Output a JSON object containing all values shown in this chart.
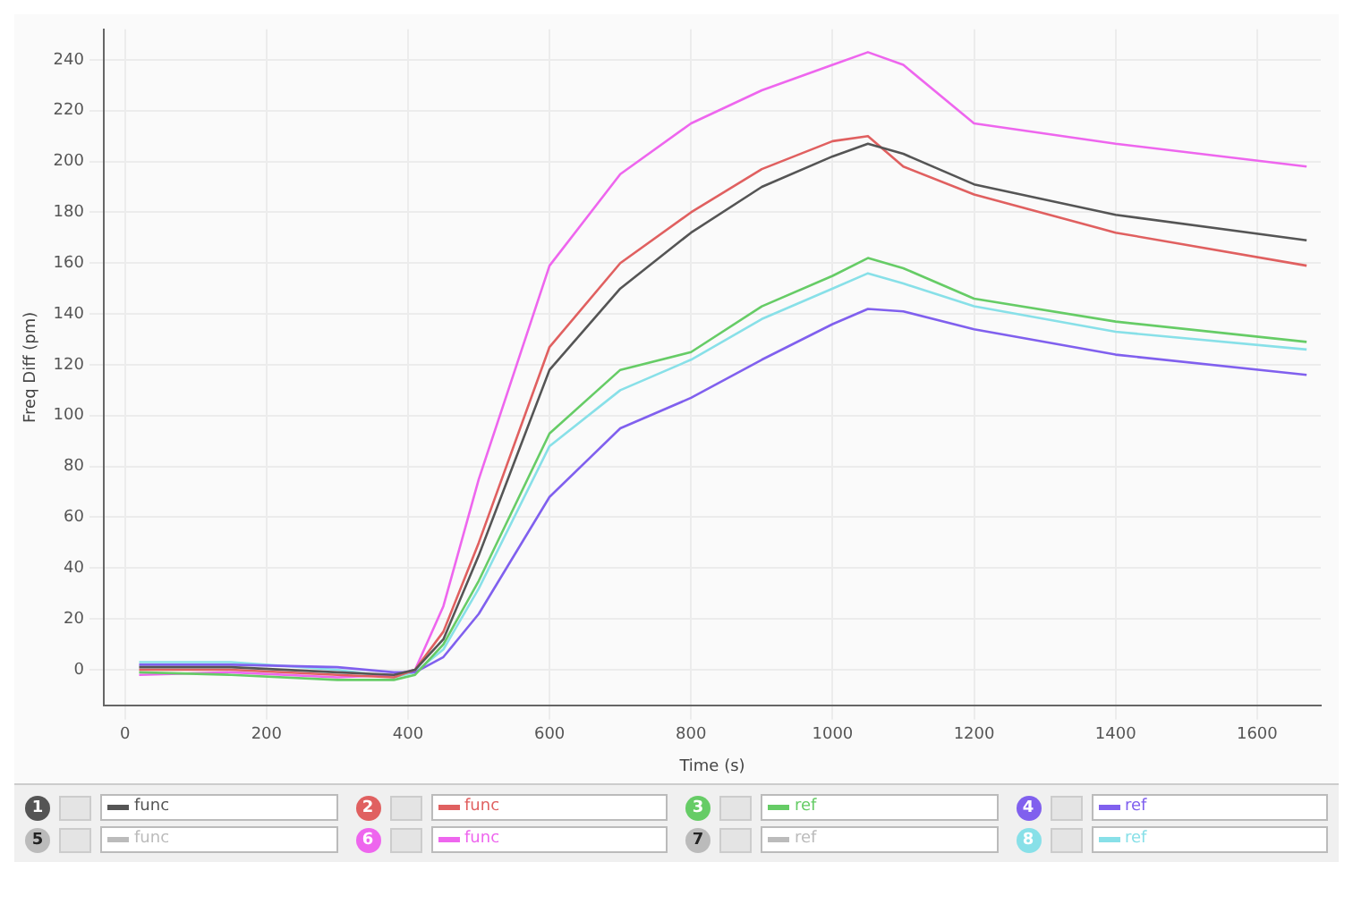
{
  "chart_data": {
    "type": "line",
    "xlabel": "Time (s)",
    "ylabel": "Freq Diff (pm)",
    "xlim": [
      -30,
      1690
    ],
    "ylim": [
      -14,
      252
    ],
    "xticks": [
      0,
      200,
      400,
      600,
      800,
      1000,
      1200,
      1400,
      1600
    ],
    "yticks": [
      0,
      20,
      40,
      60,
      80,
      100,
      120,
      140,
      160,
      180,
      200,
      220,
      240
    ],
    "grid": true,
    "legend": "bottom",
    "marker": "none",
    "line_style": "solid",
    "annotations": [
      "1",
      "2",
      "3",
      "4",
      "5",
      "6",
      "7",
      "8"
    ],
    "x": [
      20,
      150,
      300,
      380,
      410,
      450,
      500,
      600,
      700,
      800,
      900,
      1000,
      1050,
      1100,
      1200,
      1400,
      1670
    ],
    "series": [
      {
        "name": "func",
        "color": "#555555",
        "values": [
          1,
          1,
          -1,
          -2,
          0,
          12,
          45,
          118,
          150,
          172,
          190,
          202,
          207,
          203,
          191,
          179,
          169
        ]
      },
      {
        "name": "func",
        "color": "#e06060",
        "values": [
          0,
          0,
          -2,
          -3,
          0,
          15,
          50,
          127,
          160,
          180,
          197,
          208,
          210,
          198,
          187,
          172,
          159
        ]
      },
      {
        "name": "ref",
        "color": "#66cc66",
        "values": [
          -1,
          -2,
          -4,
          -4,
          -2,
          10,
          35,
          93,
          118,
          125,
          143,
          155,
          162,
          158,
          146,
          137,
          129
        ]
      },
      {
        "name": "ref",
        "color": "#8060ee",
        "values": [
          2,
          2,
          1,
          -1,
          -1,
          5,
          22,
          68,
          95,
          107,
          122,
          136,
          142,
          141,
          134,
          124,
          116
        ]
      },
      {
        "name": "func",
        "color": "#bbbbbb",
        "values": [
          null,
          null,
          null,
          null,
          null,
          null,
          null,
          null,
          null,
          null,
          null,
          null,
          null,
          null,
          null,
          null,
          null
        ]
      },
      {
        "name": "func",
        "color": "#ee66ee",
        "values": [
          -2,
          -1,
          -3,
          -2,
          0,
          25,
          75,
          159,
          195,
          215,
          228,
          238,
          243,
          238,
          215,
          207,
          198
        ]
      },
      {
        "name": "ref",
        "color": "#bbbbbb",
        "values": [
          null,
          null,
          null,
          null,
          null,
          null,
          null,
          null,
          null,
          null,
          null,
          null,
          null,
          null,
          null,
          null,
          null
        ]
      },
      {
        "name": "ref",
        "color": "#88e0e8",
        "values": [
          3,
          3,
          0,
          -3,
          -1,
          8,
          32,
          88,
          110,
          122,
          138,
          150,
          156,
          152,
          143,
          133,
          126
        ]
      }
    ]
  }
}
